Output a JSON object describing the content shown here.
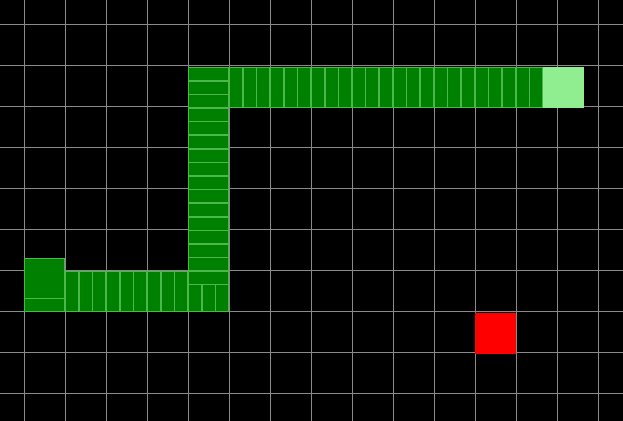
{
  "game": {
    "board": {
      "background_color": "#000000",
      "grid_color": "#8a8a8a"
    },
    "snake": {
      "body_color": "#008000",
      "head_color": "#90ee90",
      "tail_color": "#008000",
      "direction": "right"
    },
    "food": {
      "color": "#ff0000",
      "icon": "apple-block-icon"
    }
  }
}
